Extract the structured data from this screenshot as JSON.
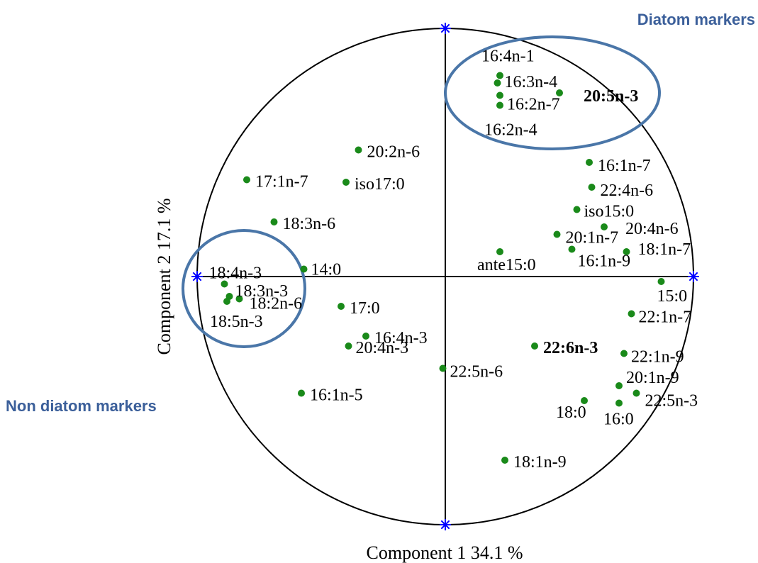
{
  "chart_data": {
    "type": "scatter",
    "xlabel": "Component 1 34.1 %",
    "ylabel": "Component 2 17.1 %",
    "xlim": [
      -1,
      1
    ],
    "ylim": [
      -1,
      1
    ],
    "unit_circle": true,
    "grid": false,
    "points": [
      {
        "label": "16:4n-1",
        "x": 0.22,
        "y": 0.81
      },
      {
        "label": "16:3n-4",
        "x": 0.21,
        "y": 0.78
      },
      {
        "label": "20:5n-3",
        "x": 0.46,
        "y": 0.74,
        "bold": true
      },
      {
        "label": "16:2n-7",
        "x": 0.22,
        "y": 0.73
      },
      {
        "label": "16:2n-4",
        "x": 0.22,
        "y": 0.69
      },
      {
        "label": "20:2n-6",
        "x": -0.35,
        "y": 0.51
      },
      {
        "label": "17:1n-7",
        "x": -0.8,
        "y": 0.39
      },
      {
        "label": "iso17:0",
        "x": -0.4,
        "y": 0.38
      },
      {
        "label": "16:1n-7",
        "x": 0.58,
        "y": 0.46
      },
      {
        "label": "22:4n-6",
        "x": 0.59,
        "y": 0.36
      },
      {
        "label": "iso15:0",
        "x": 0.53,
        "y": 0.27
      },
      {
        "label": "18:3n-6",
        "x": -0.69,
        "y": 0.22
      },
      {
        "label": "20:4n-6",
        "x": 0.64,
        "y": 0.2
      },
      {
        "label": "20:1n-7",
        "x": 0.45,
        "y": 0.17
      },
      {
        "label": "18:1n-7",
        "x": 0.73,
        "y": 0.1
      },
      {
        "label": "16:1n-9",
        "x": 0.51,
        "y": 0.11
      },
      {
        "label": "ante15:0",
        "x": 0.22,
        "y": 0.1
      },
      {
        "label": "18:4n-3",
        "x": -0.89,
        "y": -0.03
      },
      {
        "label": "14:0",
        "x": -0.57,
        "y": 0.03
      },
      {
        "label": "18:3n-3",
        "x": -0.87,
        "y": -0.08
      },
      {
        "label": "18:2n-6",
        "x": -0.83,
        "y": -0.09
      },
      {
        "label": "18:5n-3",
        "x": -0.88,
        "y": -0.1
      },
      {
        "label": "15:0",
        "x": 0.87,
        "y": -0.02
      },
      {
        "label": "17:0",
        "x": -0.42,
        "y": -0.12
      },
      {
        "label": "22:1n-7",
        "x": 0.75,
        "y": -0.15
      },
      {
        "label": "16:4n-3",
        "x": -0.32,
        "y": -0.24
      },
      {
        "label": "20:4n-3",
        "x": -0.39,
        "y": -0.28
      },
      {
        "label": "22:6n-3",
        "x": 0.36,
        "y": -0.28,
        "bold": true
      },
      {
        "label": "22:1n-9",
        "x": 0.72,
        "y": -0.31
      },
      {
        "label": "22:5n-6",
        "x": -0.01,
        "y": -0.37
      },
      {
        "label": "20:1n-9",
        "x": 0.7,
        "y": -0.44
      },
      {
        "label": "22:5n-3",
        "x": 0.77,
        "y": -0.47
      },
      {
        "label": "16:1n-5",
        "x": -0.58,
        "y": -0.47
      },
      {
        "label": "18:0",
        "x": 0.56,
        "y": -0.5
      },
      {
        "label": "16:0",
        "x": 0.7,
        "y": -0.51
      },
      {
        "label": "18:1n-9",
        "x": 0.24,
        "y": -0.74
      }
    ],
    "annotations": [
      {
        "text": "Diatom markers",
        "color": "#3b5f9a"
      },
      {
        "text": "Non diatom markers",
        "color": "#3b5f9a"
      }
    ],
    "colors": {
      "points": "#1a8a1a",
      "axis_markers": "#0000ff",
      "ellipse": "#4a76a8",
      "axes": "#000000"
    }
  }
}
